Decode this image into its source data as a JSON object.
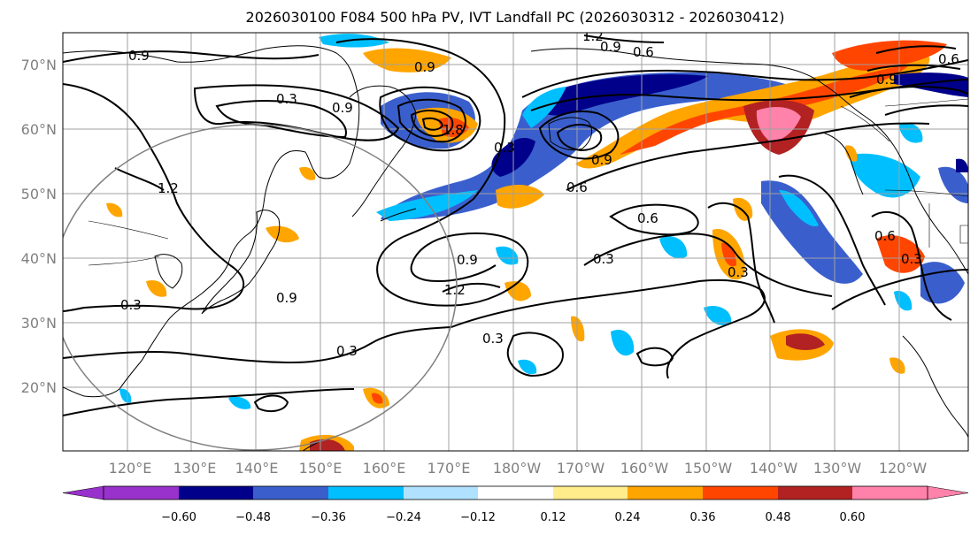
{
  "title": "2026030100 F084 500 hPa PV, IVT Landfall PC (2026030312 - 2026030412)",
  "lat_labels": [
    "70°N",
    "60°N",
    "50°N",
    "40°N",
    "30°N",
    "20°N"
  ],
  "lon_labels": [
    "120°E",
    "130°E",
    "140°E",
    "150°E",
    "160°E",
    "170°E",
    "180°W",
    "170°W",
    "160°W",
    "150°W",
    "140°W",
    "130°W",
    "120°W"
  ],
  "colorbar": {
    "tick_labels": [
      "−0.60",
      "−0.48",
      "−0.36",
      "−0.24",
      "−0.12",
      "0.12",
      "0.24",
      "0.36",
      "0.48",
      "0.60"
    ],
    "colors": [
      "#9932cc",
      "#00008b",
      "#3a5fcd",
      "#00bfff",
      "#b0e2ff",
      "#ffffff",
      "#ffec8b",
      "#ffa500",
      "#ff4500",
      "#b22222",
      "#ff82ab"
    ]
  },
  "contour_labels": [
    "0.9",
    "0.3",
    "0.9",
    "1.2",
    "0.9",
    "0.6",
    "0.6",
    "0.9",
    "1.2",
    "0.9",
    "0.3",
    "0.3",
    "0.9",
    "1.2",
    "0.3",
    "0.3",
    "0.6",
    "0.3",
    "0.3",
    "0.6",
    "0.3",
    "0.9",
    "0.6",
    "1.8",
    "0.9"
  ]
}
